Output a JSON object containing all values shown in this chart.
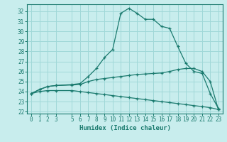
{
  "xlabel": "Humidex (Indice chaleur)",
  "bg_color": "#c8eded",
  "line_color": "#1a7a6e",
  "grid_color": "#a0d8d8",
  "xlim": [
    -0.5,
    23.5
  ],
  "ylim": [
    21.8,
    32.7
  ],
  "yticks": [
    22,
    23,
    24,
    25,
    26,
    27,
    28,
    29,
    30,
    31,
    32
  ],
  "xticks": [
    0,
    1,
    2,
    3,
    5,
    6,
    7,
    8,
    9,
    10,
    11,
    12,
    13,
    14,
    15,
    16,
    17,
    18,
    19,
    20,
    21,
    22,
    23
  ],
  "series1_x": [
    0,
    1,
    2,
    3,
    5,
    6,
    7,
    8,
    9,
    10,
    11,
    12,
    13,
    14,
    15,
    16,
    17,
    18,
    19,
    20,
    21,
    22,
    23
  ],
  "series1_y": [
    23.8,
    24.2,
    24.5,
    24.6,
    24.7,
    24.8,
    25.5,
    26.3,
    27.4,
    28.2,
    31.8,
    32.3,
    31.8,
    31.2,
    31.2,
    30.5,
    30.3,
    28.5,
    26.8,
    26.0,
    25.8,
    23.8,
    22.3
  ],
  "series2_x": [
    0,
    1,
    2,
    3,
    5,
    6,
    7,
    8,
    9,
    10,
    11,
    12,
    13,
    14,
    15,
    16,
    17,
    18,
    19,
    20,
    21,
    22,
    23
  ],
  "series2_y": [
    23.8,
    24.2,
    24.5,
    24.6,
    24.65,
    24.7,
    25.0,
    25.2,
    25.3,
    25.4,
    25.5,
    25.6,
    25.7,
    25.75,
    25.8,
    25.85,
    26.0,
    26.2,
    26.3,
    26.3,
    26.0,
    25.0,
    22.2
  ],
  "series3_x": [
    0,
    1,
    2,
    3,
    5,
    6,
    7,
    8,
    9,
    10,
    11,
    12,
    13,
    14,
    15,
    16,
    17,
    18,
    19,
    20,
    21,
    22,
    23
  ],
  "series3_y": [
    23.8,
    24.0,
    24.1,
    24.1,
    24.1,
    24.0,
    23.9,
    23.8,
    23.7,
    23.6,
    23.5,
    23.4,
    23.3,
    23.2,
    23.1,
    23.0,
    22.9,
    22.8,
    22.7,
    22.6,
    22.5,
    22.4,
    22.2
  ]
}
